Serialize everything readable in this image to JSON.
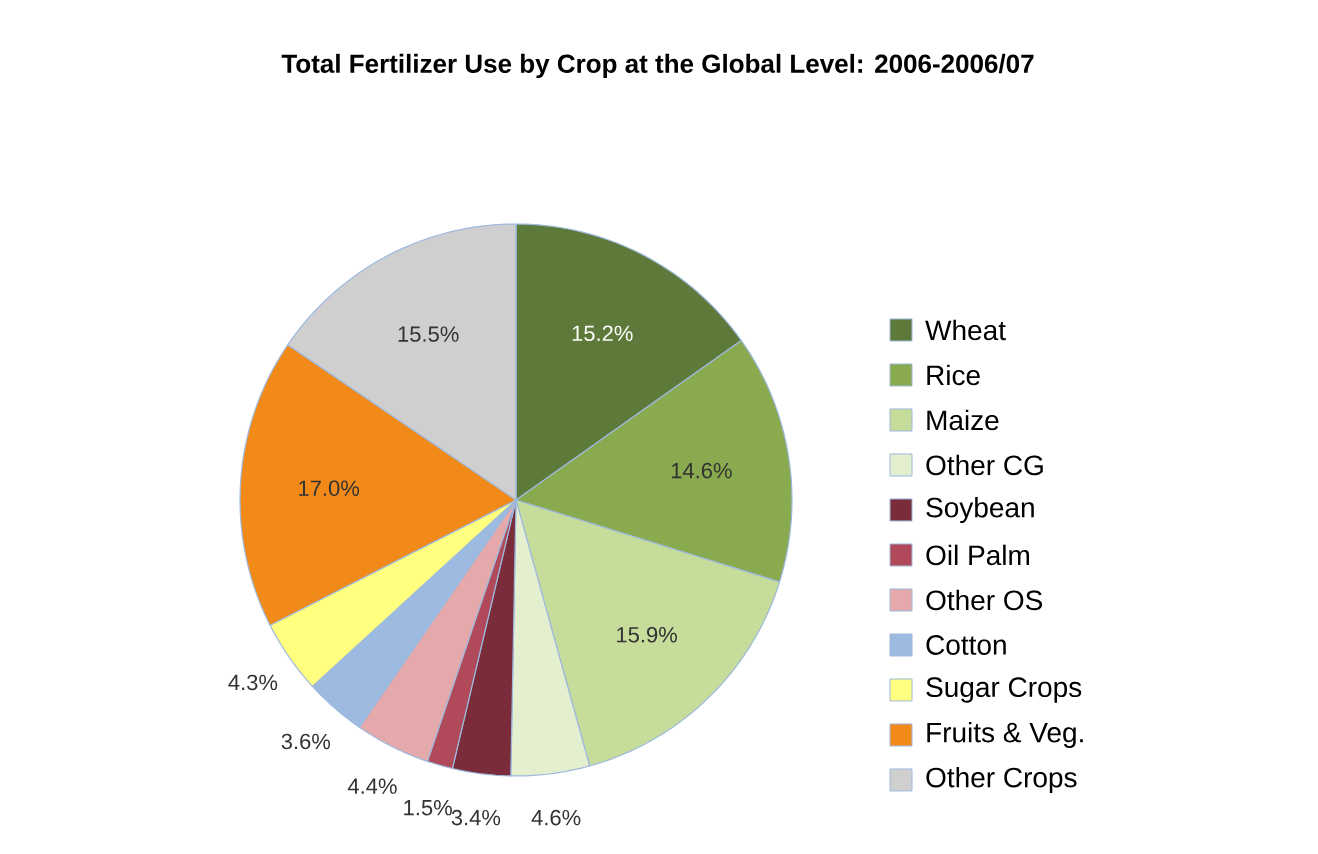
{
  "chart_data": {
    "type": "pie",
    "title": "Total Fertilizer Use by Crop at the Global Level: 2006-2006/07",
    "categories": [
      "Wheat",
      "Rice",
      "Maize",
      "Other CG",
      "Soybean",
      "Oil Palm",
      "Other OS",
      "Cotton",
      "Sugar Crops",
      "Fruits & Veg.",
      "Other Crops"
    ],
    "values": [
      15.2,
      14.6,
      15.9,
      4.6,
      3.4,
      1.5,
      4.4,
      3.6,
      4.3,
      17.0,
      15.5
    ],
    "value_labels": [
      "15.2%",
      "14.6%",
      "15.9%",
      "4.6%",
      "3.4%",
      "1.5%",
      "4.4%",
      "3.6%",
      "4.3%",
      "17.0%",
      "15.5%"
    ],
    "colors": [
      "#5e7a3a",
      "#8aaa4f",
      "#c6dc9a",
      "#e4efd0",
      "#7b2c3a",
      "#b04a5a",
      "#e5a9ab",
      "#9dbbe0",
      "#ffff80",
      "#f28a1a",
      "#cfcfcf"
    ],
    "legend": "right"
  }
}
